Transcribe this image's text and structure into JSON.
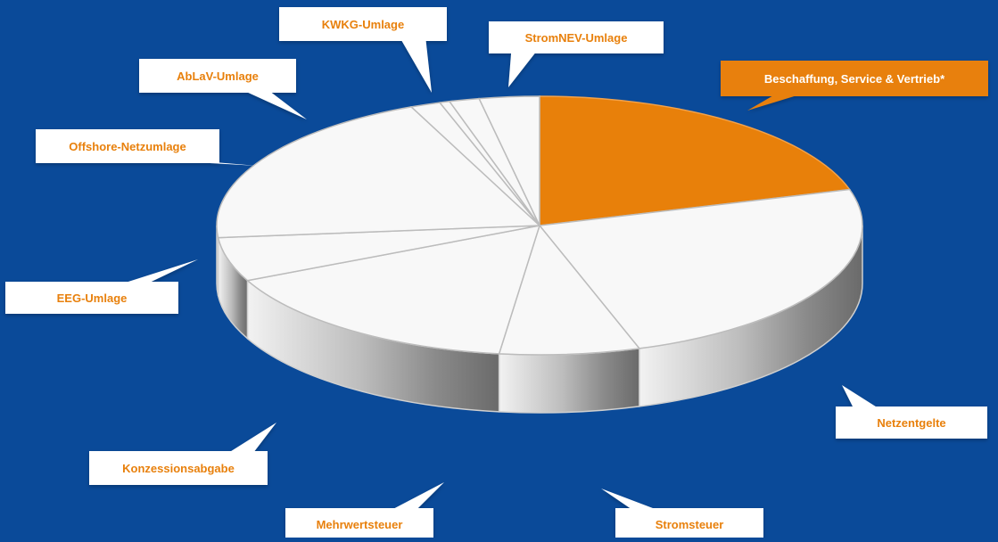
{
  "colors": {
    "background": "#0a4a99",
    "highlight_fill": "#e8800a",
    "slice_fill": "#f8f8f8",
    "label_text": "#e8800a",
    "highlight_label_text": "#ffffff",
    "label_box": "#ffffff"
  },
  "chart_data": {
    "type": "pie",
    "style": "3d-exploded-highlight",
    "title": "",
    "highlighted": "Beschaffung, Service & Vertrieb*",
    "slices": [
      {
        "label": "Beschaffung, Service & Vertrieb*",
        "value": 20.5
      },
      {
        "label": "Netzentgelte",
        "value": 24.5
      },
      {
        "label": "Stromsteuer",
        "value": 7.0
      },
      {
        "label": "Mehrwertsteuer",
        "value": 16.0
      },
      {
        "label": "Konzessionsabgabe",
        "value": 5.5
      },
      {
        "label": "EEG-Umlage",
        "value": 20.0
      },
      {
        "label": "Offshore-Netzumlage",
        "value": 1.5
      },
      {
        "label": "AbLaV-Umlage",
        "value": 0.5
      },
      {
        "label": "KWKG-Umlage",
        "value": 1.5
      },
      {
        "label": "StromNEV-Umlage",
        "value": 3.0
      }
    ]
  }
}
